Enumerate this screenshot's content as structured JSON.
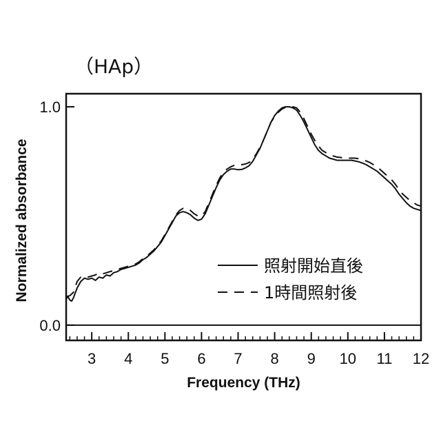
{
  "chart_data": {
    "type": "line",
    "title": "（HAp）",
    "xlabel": "Frequency (THz)",
    "ylabel": "Normalized absorbance",
    "xlim": [
      2.3,
      12
    ],
    "ylim": [
      -0.07,
      1.06
    ],
    "x_ticks": [
      "3",
      "4",
      "5",
      "6",
      "7",
      "8",
      "9",
      "10",
      "11",
      "12"
    ],
    "y_ticks": [
      "0.0",
      "1.0"
    ],
    "baseline_y": 0,
    "grid": false,
    "legend_position": "lower-right",
    "series": [
      {
        "name": "照射開始直後",
        "style": "solid",
        "color": "#111111",
        "points": [
          [
            2.3,
            0.12
          ],
          [
            2.35,
            0.13
          ],
          [
            2.4,
            0.115
          ],
          [
            2.45,
            0.11
          ],
          [
            2.5,
            0.125
          ],
          [
            2.6,
            0.17
          ],
          [
            2.7,
            0.2
          ],
          [
            2.8,
            0.215
          ],
          [
            2.9,
            0.21
          ],
          [
            3.0,
            0.215
          ],
          [
            3.1,
            0.205
          ],
          [
            3.2,
            0.22
          ],
          [
            3.3,
            0.215
          ],
          [
            3.4,
            0.23
          ],
          [
            3.5,
            0.225
          ],
          [
            3.6,
            0.24
          ],
          [
            3.7,
            0.245
          ],
          [
            3.8,
            0.255
          ],
          [
            3.9,
            0.26
          ],
          [
            4.0,
            0.265
          ],
          [
            4.1,
            0.27
          ],
          [
            4.2,
            0.275
          ],
          [
            4.3,
            0.285
          ],
          [
            4.4,
            0.3
          ],
          [
            4.5,
            0.31
          ],
          [
            4.6,
            0.325
          ],
          [
            4.7,
            0.34
          ],
          [
            4.8,
            0.36
          ],
          [
            4.9,
            0.38
          ],
          [
            5.0,
            0.41
          ],
          [
            5.1,
            0.44
          ],
          [
            5.2,
            0.47
          ],
          [
            5.3,
            0.5
          ],
          [
            5.4,
            0.515
          ],
          [
            5.5,
            0.52
          ],
          [
            5.6,
            0.515
          ],
          [
            5.7,
            0.505
          ],
          [
            5.8,
            0.49
          ],
          [
            5.9,
            0.48
          ],
          [
            6.0,
            0.485
          ],
          [
            6.1,
            0.51
          ],
          [
            6.2,
            0.55
          ],
          [
            6.3,
            0.59
          ],
          [
            6.4,
            0.63
          ],
          [
            6.5,
            0.665
          ],
          [
            6.6,
            0.69
          ],
          [
            6.7,
            0.705
          ],
          [
            6.8,
            0.715
          ],
          [
            6.9,
            0.715
          ],
          [
            7.0,
            0.712
          ],
          [
            7.1,
            0.713
          ],
          [
            7.2,
            0.72
          ],
          [
            7.3,
            0.73
          ],
          [
            7.4,
            0.75
          ],
          [
            7.5,
            0.78
          ],
          [
            7.6,
            0.81
          ],
          [
            7.7,
            0.85
          ],
          [
            7.8,
            0.89
          ],
          [
            7.9,
            0.93
          ],
          [
            8.0,
            0.96
          ],
          [
            8.1,
            0.98
          ],
          [
            8.2,
            0.995
          ],
          [
            8.3,
            1.0
          ],
          [
            8.4,
            1.0
          ],
          [
            8.5,
            0.995
          ],
          [
            8.6,
            0.985
          ],
          [
            8.7,
            0.96
          ],
          [
            8.8,
            0.93
          ],
          [
            8.9,
            0.895
          ],
          [
            9.0,
            0.86
          ],
          [
            9.1,
            0.825
          ],
          [
            9.2,
            0.8
          ],
          [
            9.3,
            0.785
          ],
          [
            9.4,
            0.775
          ],
          [
            9.5,
            0.765
          ],
          [
            9.6,
            0.76
          ],
          [
            9.7,
            0.755
          ],
          [
            9.8,
            0.755
          ],
          [
            9.9,
            0.755
          ],
          [
            10.0,
            0.755
          ],
          [
            10.1,
            0.755
          ],
          [
            10.2,
            0.752
          ],
          [
            10.3,
            0.748
          ],
          [
            10.4,
            0.742
          ],
          [
            10.5,
            0.735
          ],
          [
            10.6,
            0.725
          ],
          [
            10.7,
            0.715
          ],
          [
            10.8,
            0.705
          ],
          [
            10.9,
            0.69
          ],
          [
            11.0,
            0.675
          ],
          [
            11.1,
            0.66
          ],
          [
            11.2,
            0.645
          ],
          [
            11.3,
            0.625
          ],
          [
            11.4,
            0.6
          ],
          [
            11.5,
            0.58
          ],
          [
            11.6,
            0.56
          ],
          [
            11.7,
            0.545
          ],
          [
            11.8,
            0.535
          ],
          [
            11.9,
            0.53
          ],
          [
            12.0,
            0.525
          ]
        ]
      },
      {
        "name": "1時間照射後",
        "style": "dashed",
        "color": "#111111",
        "points": [
          [
            2.3,
            0.13
          ],
          [
            2.4,
            0.135
          ],
          [
            2.5,
            0.15
          ],
          [
            2.6,
            0.2
          ],
          [
            2.7,
            0.22
          ],
          [
            2.8,
            0.225
          ],
          [
            2.9,
            0.22
          ],
          [
            3.0,
            0.225
          ],
          [
            3.1,
            0.23
          ],
          [
            3.2,
            0.24
          ],
          [
            3.3,
            0.235
          ],
          [
            3.4,
            0.24
          ],
          [
            3.5,
            0.245
          ],
          [
            3.6,
            0.25
          ],
          [
            3.7,
            0.255
          ],
          [
            3.8,
            0.26
          ],
          [
            3.9,
            0.265
          ],
          [
            4.0,
            0.27
          ],
          [
            4.1,
            0.275
          ],
          [
            4.2,
            0.28
          ],
          [
            4.3,
            0.29
          ],
          [
            4.4,
            0.305
          ],
          [
            4.5,
            0.315
          ],
          [
            4.6,
            0.33
          ],
          [
            4.7,
            0.345
          ],
          [
            4.8,
            0.365
          ],
          [
            4.9,
            0.385
          ],
          [
            5.0,
            0.415
          ],
          [
            5.1,
            0.445
          ],
          [
            5.2,
            0.475
          ],
          [
            5.3,
            0.505
          ],
          [
            5.4,
            0.525
          ],
          [
            5.5,
            0.535
          ],
          [
            5.6,
            0.535
          ],
          [
            5.7,
            0.525
          ],
          [
            5.8,
            0.51
          ],
          [
            5.9,
            0.5
          ],
          [
            6.0,
            0.5
          ],
          [
            6.1,
            0.52
          ],
          [
            6.2,
            0.56
          ],
          [
            6.3,
            0.6
          ],
          [
            6.4,
            0.64
          ],
          [
            6.5,
            0.675
          ],
          [
            6.6,
            0.7
          ],
          [
            6.7,
            0.715
          ],
          [
            6.8,
            0.725
          ],
          [
            6.9,
            0.732
          ],
          [
            7.0,
            0.735
          ],
          [
            7.1,
            0.735
          ],
          [
            7.2,
            0.738
          ],
          [
            7.3,
            0.745
          ],
          [
            7.4,
            0.76
          ],
          [
            7.5,
            0.785
          ],
          [
            7.6,
            0.815
          ],
          [
            7.7,
            0.85
          ],
          [
            7.8,
            0.89
          ],
          [
            7.9,
            0.93
          ],
          [
            8.0,
            0.955
          ],
          [
            8.1,
            0.975
          ],
          [
            8.2,
            0.99
          ],
          [
            8.3,
            0.998
          ],
          [
            8.4,
            1.002
          ],
          [
            8.5,
            1.0
          ],
          [
            8.6,
            0.995
          ],
          [
            8.7,
            0.975
          ],
          [
            8.8,
            0.945
          ],
          [
            8.9,
            0.91
          ],
          [
            9.0,
            0.875
          ],
          [
            9.1,
            0.845
          ],
          [
            9.2,
            0.82
          ],
          [
            9.3,
            0.8
          ],
          [
            9.4,
            0.79
          ],
          [
            9.5,
            0.78
          ],
          [
            9.6,
            0.775
          ],
          [
            9.7,
            0.77
          ],
          [
            9.8,
            0.768
          ],
          [
            9.9,
            0.765
          ],
          [
            10.0,
            0.765
          ],
          [
            10.1,
            0.765
          ],
          [
            10.2,
            0.765
          ],
          [
            10.3,
            0.762
          ],
          [
            10.4,
            0.758
          ],
          [
            10.5,
            0.752
          ],
          [
            10.6,
            0.745
          ],
          [
            10.7,
            0.735
          ],
          [
            10.8,
            0.725
          ],
          [
            10.9,
            0.71
          ],
          [
            11.0,
            0.695
          ],
          [
            11.1,
            0.68
          ],
          [
            11.2,
            0.665
          ],
          [
            11.3,
            0.645
          ],
          [
            11.4,
            0.62
          ],
          [
            11.5,
            0.6
          ],
          [
            11.6,
            0.585
          ],
          [
            11.7,
            0.57
          ],
          [
            11.8,
            0.56
          ],
          [
            11.9,
            0.55
          ],
          [
            12.0,
            0.545
          ]
        ]
      }
    ]
  }
}
